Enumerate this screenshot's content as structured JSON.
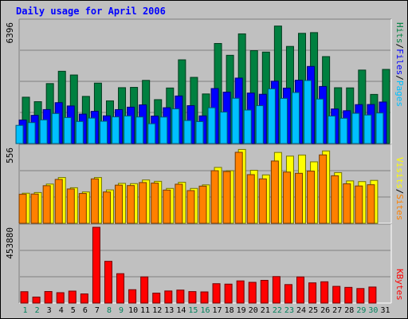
{
  "chart_data": {
    "type": "bar",
    "title": "Daily usage for April 2006",
    "categories": [
      "1",
      "2",
      "3",
      "4",
      "5",
      "6",
      "7",
      "8",
      "9",
      "10",
      "11",
      "12",
      "13",
      "14",
      "15",
      "16",
      "17",
      "18",
      "19",
      "20",
      "21",
      "22",
      "23",
      "24",
      "25",
      "26",
      "27",
      "28",
      "29",
      "30",
      "31"
    ],
    "weekend_days": [
      1,
      2,
      8,
      9,
      15,
      16,
      22,
      23,
      29,
      30
    ],
    "panels": [
      {
        "name": "hits-files-pages",
        "max_label": "6396",
        "ylim": [
          0,
          6396
        ],
        "series": [
          {
            "name": "Hits",
            "color": "#008040",
            "values": [
              2445,
              2209,
              3164,
              3814,
              3617,
              2488,
              3188,
              2253,
              2948,
              2964,
              3333,
              2316,
              2931,
              4418,
              3492,
              2617,
              5280,
              4657,
              5787,
              4902,
              4826,
              6200,
              5125,
              5816,
              5854,
              4588,
              2945,
              2937,
              3877,
              2593,
              3912
            ]
          },
          {
            "name": "Files",
            "color": "#0000ff",
            "values": [
              1243,
              1488,
              1792,
              2158,
              1983,
              1554,
              1700,
              1463,
              1790,
              1920,
              2041,
              1449,
              1890,
              2510,
              2000,
              1460,
              2902,
              2714,
              3454,
              2664,
              2600,
              3290,
              2925,
              3342,
              4069,
              3012,
              1825,
              1732,
              2054,
              2060,
              2191
            ]
          },
          {
            "name": "Pages",
            "color": "#00c0ff",
            "values": [
              959,
              1106,
              1249,
              1584,
              1371,
              1164,
              1343,
              1177,
              1406,
              1457,
              1402,
              1046,
              1398,
              1830,
              1216,
              1158,
              1889,
              1661,
              2389,
              1767,
              1998,
              2887,
              2383,
              2692,
              3327,
              2348,
              1450,
              1334,
              1595,
              1505,
              1613
            ]
          }
        ]
      },
      {
        "name": "sites-visits",
        "max_label": "556",
        "ylim": [
          0,
          556
        ],
        "series": [
          {
            "name": "Visits",
            "color": "#ffff00",
            "values": [
              221,
              226,
              288,
              336,
              261,
              230,
              336,
              245,
              293,
              291,
              318,
              308,
              256,
              301,
              256,
              282,
              410,
              386,
              542,
              389,
              355,
              520,
              493,
              501,
              451,
              531,
              372,
              311,
              306,
              315,
              0
            ]
          },
          {
            "name": "Sites",
            "color": "#ff8000",
            "values": [
              213,
              215,
              276,
              322,
              252,
              219,
              326,
              230,
              280,
              277,
              299,
              295,
              244,
              287,
              240,
              273,
              386,
              380,
              521,
              357,
              326,
              457,
              376,
              367,
              383,
              502,
              349,
              290,
              274,
              283,
              0
            ]
          }
        ]
      },
      {
        "name": "kbytes",
        "max_label": "453880",
        "ylim": [
          0,
          453880
        ],
        "series": [
          {
            "name": "KBytes",
            "color": "#ff0000",
            "values": [
              68100,
              36000,
              69100,
              62200,
              71700,
              54700,
              453880,
              250000,
              176000,
              80000,
              156700,
              59500,
              72400,
              77700,
              68700,
              66800,
              116000,
              113500,
              132800,
              124200,
              136000,
              158700,
              110700,
              156400,
              121000,
              127500,
              100000,
              94000,
              87000,
              96000,
              0
            ]
          }
        ]
      }
    ],
    "right_labels": [
      {
        "text": "Pages",
        "color": "#00c0ff"
      },
      {
        "text": "/",
        "color": "#000000"
      },
      {
        "text": "Files",
        "color": "#0000ff"
      },
      {
        "text": "/",
        "color": "#000000"
      },
      {
        "text": "Hits",
        "color": "#008040"
      },
      {
        "text": "Sites",
        "color": "#ff8000"
      },
      {
        "text": "/",
        "color": "#000000"
      },
      {
        "text": "Visits",
        "color": "#ffff00"
      },
      {
        "text": "KBytes",
        "color": "#ff0000"
      }
    ],
    "day_label_colors": {
      "weekday": "#000000",
      "weekend": "#00805c"
    },
    "grid": true
  }
}
